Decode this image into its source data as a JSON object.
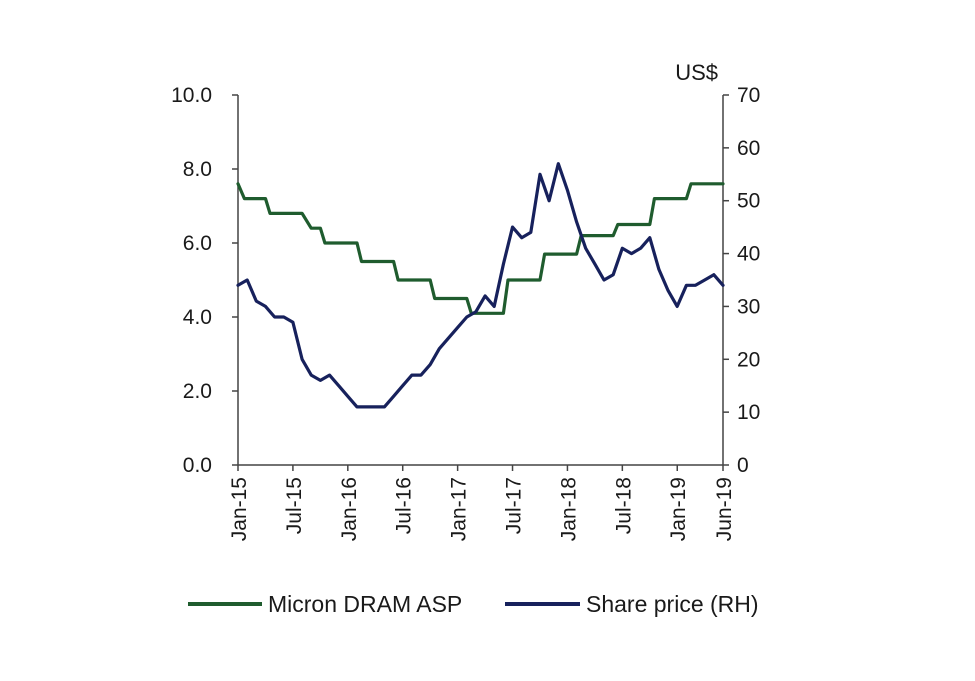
{
  "chart_data": {
    "type": "line",
    "title": "",
    "xlabel": "",
    "right_axis_unit": "US$",
    "x_tick_labels": [
      "Jan-15",
      "Jul-15",
      "Jan-16",
      "Jul-16",
      "Jan-17",
      "Jul-17",
      "Jan-18",
      "Jul-18",
      "Jan-19",
      "Jun-19"
    ],
    "x_range": [
      "Jan-15",
      "Jun-19"
    ],
    "y_left": {
      "range": [
        0,
        10
      ],
      "ticks": [
        "0.0",
        "2.0",
        "4.0",
        "6.0",
        "8.0",
        "10.0"
      ]
    },
    "y_right": {
      "range": [
        0,
        70
      ],
      "ticks": [
        "0",
        "10",
        "20",
        "30",
        "40",
        "50",
        "60",
        "70"
      ]
    },
    "grid": false,
    "legend_position": "bottom",
    "series": [
      {
        "name": "Micron DRAM ASP",
        "axis": "left",
        "color": "#1f5c2e",
        "x": [
          0,
          0.7,
          1,
          2,
          3,
          3.5,
          5,
          6,
          7,
          8,
          9,
          9.5,
          11,
          12,
          13,
          13.5,
          15,
          16,
          17,
          17.5,
          19,
          20,
          21,
          21.5,
          23,
          24,
          25,
          25.5,
          27,
          28,
          29,
          29.5,
          31,
          32,
          33,
          33.5,
          35,
          36,
          37,
          37.5,
          39,
          40,
          41,
          41.5,
          43,
          44,
          45,
          45.5,
          47,
          48,
          49,
          49.5,
          51,
          52,
          53
        ],
        "y": [
          7.6,
          7.2,
          7.2,
          7.2,
          7.2,
          6.8,
          6.8,
          6.8,
          6.8,
          6.4,
          6.4,
          6.0,
          6.0,
          6.0,
          6.0,
          5.5,
          5.5,
          5.5,
          5.5,
          5.0,
          5.0,
          5.0,
          5.0,
          4.5,
          4.5,
          4.5,
          4.5,
          4.1,
          4.1,
          4.1,
          4.1,
          5.0,
          5.0,
          5.0,
          5.0,
          5.7,
          5.7,
          5.7,
          5.7,
          6.2,
          6.2,
          6.2,
          6.2,
          6.5,
          6.5,
          6.5,
          6.5,
          7.2,
          7.2,
          7.2,
          7.2,
          7.6,
          7.6,
          7.6,
          7.6
        ]
      },
      {
        "name": "Share price (RH)",
        "axis": "right",
        "color": "#17215c",
        "x": [
          0,
          1,
          2,
          3,
          4,
          5,
          6,
          7,
          8,
          9,
          10,
          11,
          12,
          13,
          14,
          15,
          16,
          17,
          18,
          19,
          20,
          21,
          22,
          23,
          24,
          25,
          26,
          27,
          28,
          29,
          30,
          31,
          32,
          33,
          34,
          35,
          36,
          37,
          38,
          39,
          40,
          41,
          42,
          43,
          44,
          45,
          46,
          47,
          48,
          49,
          50,
          51,
          52,
          53
        ],
        "y": [
          34,
          35,
          31,
          30,
          28,
          28,
          27,
          20,
          17,
          16,
          17,
          15,
          13,
          11,
          11,
          11,
          11,
          13,
          15,
          17,
          17,
          19,
          22,
          24,
          26,
          28,
          29,
          32,
          30,
          38,
          45,
          43,
          44,
          55,
          50,
          57,
          52,
          46,
          41,
          38,
          35,
          36,
          41,
          40,
          41,
          43,
          37,
          33,
          30,
          34,
          34,
          35,
          36,
          34
        ]
      }
    ]
  }
}
